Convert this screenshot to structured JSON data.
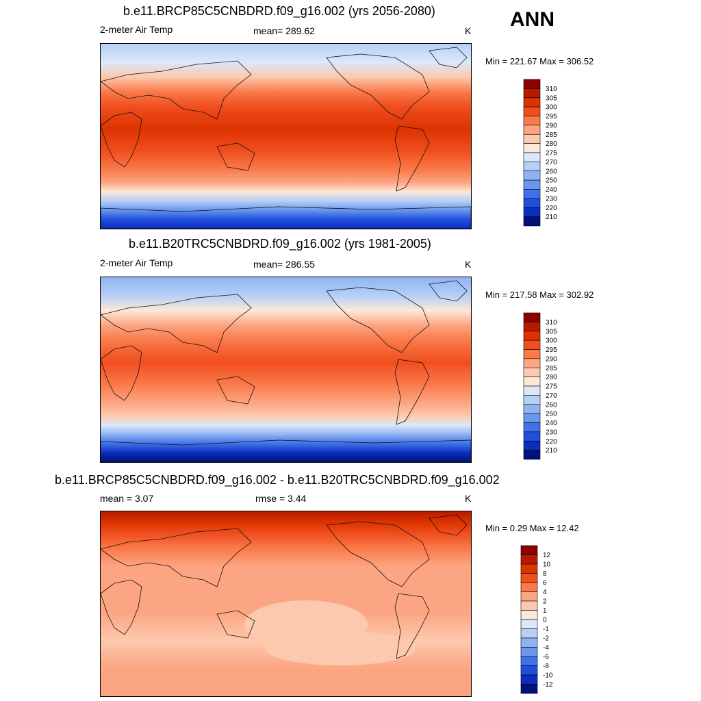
{
  "season": "ANN",
  "panels": [
    {
      "title": "b.e11.BRCP85C5CNBDRD.f09_g16.002 (yrs 2056-2080)",
      "left_label": "2-meter Air Temp",
      "center_label": "mean= 289.62",
      "units": "K",
      "minmax": "Min = 221.67 Max = 306.52",
      "field": "future"
    },
    {
      "title": "b.e11.B20TRC5CNBDRD.f09_g16.002 (yrs 1981-2005)",
      "left_label": "2-meter Air Temp",
      "center_label": "mean= 286.55",
      "units": "K",
      "minmax": "Min = 217.58 Max = 302.92",
      "field": "present"
    },
    {
      "title": "b.e11.BRCP85C5CNBDRD.f09_g16.002 - b.e11.B20TRC5CNBDRD.f09_g16.002",
      "left_label": "mean =   3.07",
      "center_label": "rmse =   3.44",
      "units": "K",
      "minmax": "Min =   0.29 Max =  12.42",
      "field": "difference"
    }
  ],
  "colorbars": {
    "temperature": {
      "labels": [
        "310",
        "305",
        "300",
        "295",
        "290",
        "285",
        "280",
        "275",
        "270",
        "260",
        "250",
        "240",
        "230",
        "220",
        "210"
      ],
      "colors": [
        "#8b0000",
        "#b81a00",
        "#dc3300",
        "#f04e1e",
        "#fa7a4a",
        "#fca582",
        "#fdc9ae",
        "#fde8d8",
        "#dbe8fa",
        "#b7cff6",
        "#8fb3f2",
        "#6a96ee",
        "#3f72ea",
        "#1f4fdc",
        "#0b2fbc",
        "#00107c"
      ]
    },
    "difference": {
      "labels": [
        "12",
        "10",
        "8",
        "6",
        "4",
        "2",
        "1",
        "0",
        "-1",
        "-2",
        "-4",
        "-6",
        "-8",
        "-10",
        "-12"
      ],
      "colors": [
        "#8b0000",
        "#b81a00",
        "#dc3300",
        "#f04e1e",
        "#fa7a4a",
        "#fca582",
        "#fdc9ae",
        "#fde8d8",
        "#dbe8fa",
        "#b7cff6",
        "#8fb3f2",
        "#6a96ee",
        "#3f72ea",
        "#1f4fdc",
        "#0b2fbc",
        "#00107c"
      ]
    }
  }
}
